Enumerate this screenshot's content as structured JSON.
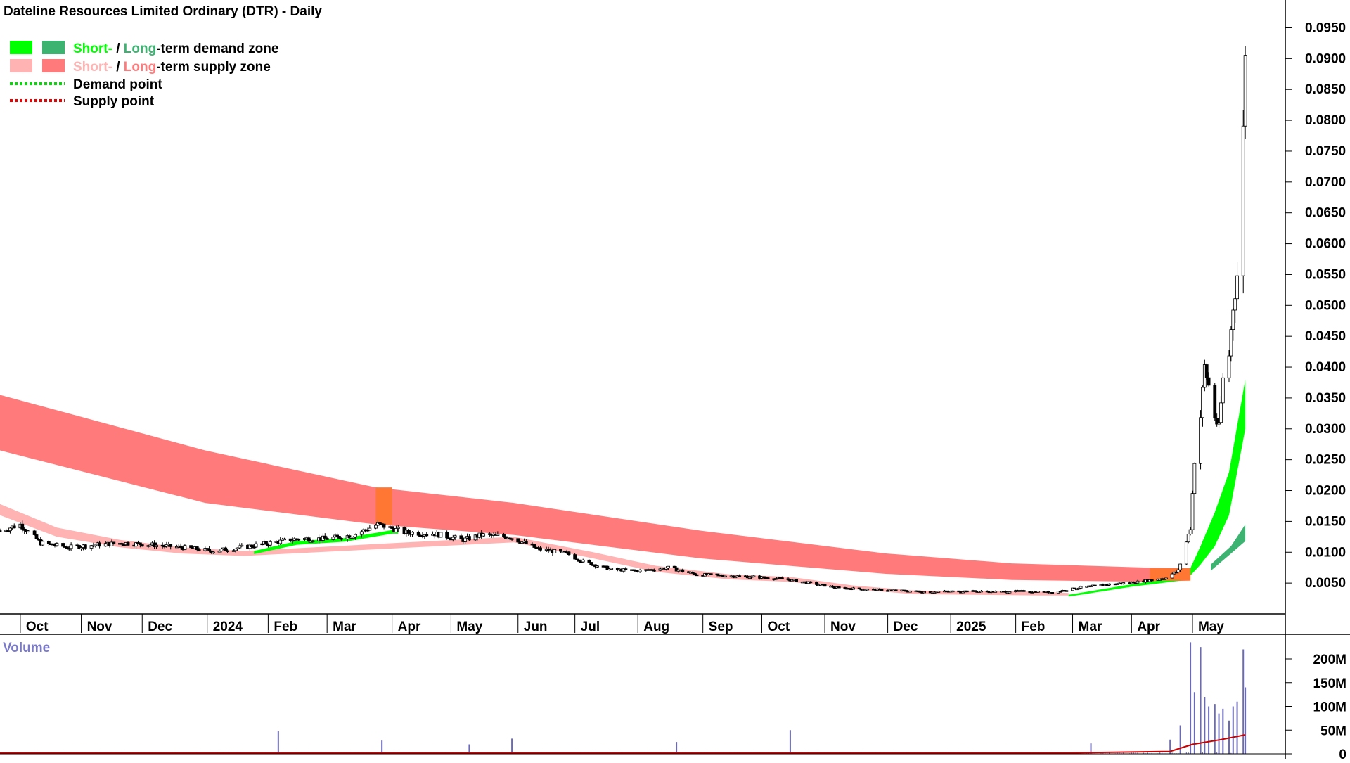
{
  "title": "Dateline Resources Limited Ordinary (DTR) - Daily",
  "legend": {
    "demand_zone": {
      "short": "Short-",
      "sep": " / ",
      "long": "Long",
      "rest": "-term demand zone"
    },
    "supply_zone": {
      "short": "Short-",
      "sep": " / ",
      "long": "Long",
      "rest": "-term supply zone"
    },
    "demand_point": "Demand point",
    "supply_point": "Supply point"
  },
  "colors": {
    "demand_short": "#00ff00",
    "demand_long": "#3cb371",
    "supply_short": "#ffb3b3",
    "supply_long": "#ff7b7b",
    "overlap": "#ff7733",
    "demand_point": "#00dd00",
    "supply_point": "#ee0000",
    "volume_bar": "#6a6ab8",
    "volume_ma": "#cc0000",
    "volume_label": "#7a7ac8"
  },
  "chart_data": {
    "type": "candlestick",
    "title": "Dateline Resources Limited Ordinary (DTR) - Daily",
    "x_range": [
      "2023-09-22",
      "2025-05-28"
    ],
    "ylim": [
      0,
      0.0995
    ],
    "price_ticks": [
      "0.0950",
      "0.0900",
      "0.0850",
      "0.0800",
      "0.0750",
      "0.0700",
      "0.0650",
      "0.0600",
      "0.0550",
      "0.0500",
      "0.0450",
      "0.0400",
      "0.0350",
      "0.0300",
      "0.0250",
      "0.0200",
      "0.0150",
      "0.0100",
      "0.0050"
    ],
    "x_ticks": [
      {
        "label": "Oct",
        "date": "2023-10-02"
      },
      {
        "label": "Nov",
        "date": "2023-11-01"
      },
      {
        "label": "Dec",
        "date": "2023-12-01"
      },
      {
        "label": "2024",
        "date": "2024-01-02"
      },
      {
        "label": "Feb",
        "date": "2024-02-01"
      },
      {
        "label": "Mar",
        "date": "2024-03-01"
      },
      {
        "label": "Apr",
        "date": "2024-04-02"
      },
      {
        "label": "May",
        "date": "2024-05-01"
      },
      {
        "label": "Jun",
        "date": "2024-06-03"
      },
      {
        "label": "Jul",
        "date": "2024-07-01"
      },
      {
        "label": "Aug",
        "date": "2024-08-01"
      },
      {
        "label": "Sep",
        "date": "2024-09-02"
      },
      {
        "label": "Oct",
        "date": "2024-10-01"
      },
      {
        "label": "Nov",
        "date": "2024-11-01"
      },
      {
        "label": "Dec",
        "date": "2024-12-02"
      },
      {
        "label": "2025",
        "date": "2025-01-02"
      },
      {
        "label": "Feb",
        "date": "2025-02-03"
      },
      {
        "label": "Mar",
        "date": "2025-03-03"
      },
      {
        "label": "Apr",
        "date": "2025-04-01"
      },
      {
        "label": "May",
        "date": "2025-05-01"
      }
    ],
    "price_path": [
      [
        "2023-09-22",
        0.0135
      ],
      [
        "2023-10-02",
        0.0145
      ],
      [
        "2023-10-12",
        0.0115
      ],
      [
        "2023-10-26",
        0.0108
      ],
      [
        "2023-11-08",
        0.0112
      ],
      [
        "2023-11-22",
        0.0115
      ],
      [
        "2023-12-06",
        0.0112
      ],
      [
        "2023-12-20",
        0.0108
      ],
      [
        "2024-01-05",
        0.0102
      ],
      [
        "2024-01-19",
        0.0108
      ],
      [
        "2024-02-02",
        0.0115
      ],
      [
        "2024-02-16",
        0.0122
      ],
      [
        "2024-03-01",
        0.0122
      ],
      [
        "2024-03-14",
        0.0128
      ],
      [
        "2024-03-26",
        0.0145
      ],
      [
        "2024-04-09",
        0.0132
      ],
      [
        "2024-04-23",
        0.013
      ],
      [
        "2024-05-07",
        0.012
      ],
      [
        "2024-05-16",
        0.0128
      ],
      [
        "2024-05-30",
        0.0125
      ],
      [
        "2024-06-13",
        0.0105
      ],
      [
        "2024-06-27",
        0.0098
      ],
      [
        "2024-07-05",
        0.0085
      ],
      [
        "2024-07-19",
        0.0072
      ],
      [
        "2024-08-02",
        0.007
      ],
      [
        "2024-08-16",
        0.0075
      ],
      [
        "2024-08-30",
        0.0064
      ],
      [
        "2024-09-13",
        0.0062
      ],
      [
        "2024-09-27",
        0.006
      ],
      [
        "2024-10-11",
        0.0057
      ],
      [
        "2024-10-25",
        0.005
      ],
      [
        "2024-11-08",
        0.0042
      ],
      [
        "2024-11-22",
        0.004
      ],
      [
        "2024-12-06",
        0.0038
      ],
      [
        "2024-12-20",
        0.0036
      ],
      [
        "2025-01-10",
        0.0037
      ],
      [
        "2025-01-24",
        0.0036
      ],
      [
        "2025-02-07",
        0.0037
      ],
      [
        "2025-02-21",
        0.0035
      ],
      [
        "2025-03-07",
        0.0043
      ],
      [
        "2025-03-21",
        0.0048
      ],
      [
        "2025-04-04",
        0.0052
      ],
      [
        "2025-04-17",
        0.0058
      ],
      [
        "2025-04-24",
        0.007
      ],
      [
        "2025-04-30",
        0.014
      ],
      [
        "2025-05-02",
        0.025
      ],
      [
        "2025-05-05",
        0.032
      ],
      [
        "2025-05-07",
        0.04
      ],
      [
        "2025-05-09",
        0.037
      ],
      [
        "2025-05-12",
        0.032
      ],
      [
        "2025-05-14",
        0.03
      ],
      [
        "2025-05-16",
        0.038
      ],
      [
        "2025-05-19",
        0.042
      ],
      [
        "2025-05-21",
        0.05
      ],
      [
        "2025-05-23",
        0.055
      ],
      [
        "2025-05-26",
        0.078
      ],
      [
        "2025-05-27",
        0.092
      ]
    ],
    "long_term_supply_zone": {
      "upper": [
        [
          "2023-09-22",
          0.0355
        ],
        [
          "2024-01-01",
          0.0265
        ],
        [
          "2024-03-25",
          0.0205
        ],
        [
          "2024-06-01",
          0.018
        ],
        [
          "2024-09-01",
          0.0135
        ],
        [
          "2024-12-01",
          0.0098
        ],
        [
          "2025-02-01",
          0.0082
        ],
        [
          "2025-04-10",
          0.0075
        ],
        [
          "2025-04-30",
          0.0074
        ]
      ],
      "lower": [
        [
          "2023-09-22",
          0.0265
        ],
        [
          "2024-01-01",
          0.018
        ],
        [
          "2024-03-25",
          0.0145
        ],
        [
          "2024-06-01",
          0.0128
        ],
        [
          "2024-09-01",
          0.009
        ],
        [
          "2024-12-01",
          0.0065
        ],
        [
          "2025-02-01",
          0.0055
        ],
        [
          "2025-04-10",
          0.0052
        ],
        [
          "2025-04-30",
          0.0054
        ]
      ]
    },
    "short_term_supply_zone": {
      "upper": [
        [
          "2023-09-22",
          0.0178
        ],
        [
          "2023-10-20",
          0.014
        ],
        [
          "2023-11-20",
          0.012
        ],
        [
          "2023-12-20",
          0.0108
        ],
        [
          "2024-01-20",
          0.0102
        ],
        [
          "2024-06-01",
          0.0125
        ],
        [
          "2024-07-10",
          0.01
        ],
        [
          "2024-08-10",
          0.0078
        ],
        [
          "2024-09-15",
          0.0064
        ],
        [
          "2024-10-15",
          0.006
        ],
        [
          "2024-11-15",
          0.0046
        ],
        [
          "2024-12-15",
          0.0038
        ],
        [
          "2025-02-15",
          0.0036
        ],
        [
          "2025-03-01",
          0.0034
        ]
      ],
      "lower": [
        [
          "2023-09-22",
          0.016
        ],
        [
          "2023-10-20",
          0.0125
        ],
        [
          "2023-11-20",
          0.0108
        ],
        [
          "2023-12-20",
          0.0098
        ],
        [
          "2024-01-20",
          0.0094
        ],
        [
          "2024-06-01",
          0.0116
        ],
        [
          "2024-07-10",
          0.009
        ],
        [
          "2024-08-10",
          0.0068
        ],
        [
          "2024-09-15",
          0.0056
        ],
        [
          "2024-10-15",
          0.0052
        ],
        [
          "2024-11-15",
          0.004
        ],
        [
          "2024-12-15",
          0.0032
        ],
        [
          "2025-02-15",
          0.003
        ],
        [
          "2025-03-01",
          0.003
        ]
      ]
    },
    "short_term_demand_zone": {
      "upper": [
        [
          "2024-01-25",
          0.0102
        ],
        [
          "2024-02-15",
          0.0118
        ],
        [
          "2024-03-10",
          0.0123
        ],
        [
          "2024-04-02",
          0.0136
        ],
        [
          "2024-04-05",
          0.0136
        ]
      ],
      "lower": [
        [
          "2024-01-25",
          0.0097
        ],
        [
          "2024-02-15",
          0.0112
        ],
        [
          "2024-03-10",
          0.0117
        ],
        [
          "2024-04-02",
          0.013
        ],
        [
          "2024-04-05",
          0.013
        ]
      ],
      "upper2": [
        [
          "2025-03-01",
          0.0031
        ],
        [
          "2025-04-01",
          0.0048
        ],
        [
          "2025-04-28",
          0.006
        ],
        [
          "2025-05-05",
          0.011
        ],
        [
          "2025-05-12",
          0.0165
        ],
        [
          "2025-05-19",
          0.023
        ],
        [
          "2025-05-27",
          0.038
        ]
      ],
      "lower2": [
        [
          "2025-03-01",
          0.0028
        ],
        [
          "2025-04-01",
          0.0044
        ],
        [
          "2025-04-28",
          0.0055
        ],
        [
          "2025-05-05",
          0.008
        ],
        [
          "2025-05-12",
          0.011
        ],
        [
          "2025-05-19",
          0.016
        ],
        [
          "2025-05-27",
          0.03
        ]
      ]
    },
    "long_term_demand_zone": {
      "upper": [
        [
          "2025-05-10",
          0.008
        ],
        [
          "2025-05-20",
          0.011
        ],
        [
          "2025-05-27",
          0.0145
        ]
      ],
      "lower": [
        [
          "2025-05-10",
          0.007
        ],
        [
          "2025-05-20",
          0.0098
        ],
        [
          "2025-05-27",
          0.0118
        ]
      ]
    },
    "overlap_zones": [
      {
        "from": "2024-03-25",
        "to": "2024-04-02",
        "low": 0.0145,
        "high": 0.0205
      },
      {
        "from": "2025-04-10",
        "to": "2025-04-30",
        "low": 0.0054,
        "high": 0.0074
      }
    ],
    "volume": {
      "label": "Volume",
      "ticks": [
        "200M",
        "150M",
        "100M",
        "50M",
        "0"
      ],
      "ylim": [
        0,
        240
      ],
      "spikes": [
        {
          "date": "2024-02-06",
          "value": 48
        },
        {
          "date": "2024-03-28",
          "value": 28
        },
        {
          "date": "2024-05-10",
          "value": 20
        },
        {
          "date": "2024-05-31",
          "value": 32
        },
        {
          "date": "2024-08-20",
          "value": 25
        },
        {
          "date": "2024-10-15",
          "value": 50
        },
        {
          "date": "2025-03-12",
          "value": 22
        },
        {
          "date": "2025-04-20",
          "value": 30
        },
        {
          "date": "2025-04-25",
          "value": 60
        },
        {
          "date": "2025-04-30",
          "value": 235
        },
        {
          "date": "2025-05-02",
          "value": 130
        },
        {
          "date": "2025-05-05",
          "value": 225
        },
        {
          "date": "2025-05-07",
          "value": 120
        },
        {
          "date": "2025-05-09",
          "value": 100
        },
        {
          "date": "2025-05-12",
          "value": 105
        },
        {
          "date": "2025-05-14",
          "value": 85
        },
        {
          "date": "2025-05-16",
          "value": 95
        },
        {
          "date": "2025-05-19",
          "value": 70
        },
        {
          "date": "2025-05-21",
          "value": 100
        },
        {
          "date": "2025-05-23",
          "value": 110
        },
        {
          "date": "2025-05-26",
          "value": 220
        },
        {
          "date": "2025-05-27",
          "value": 140
        }
      ],
      "ma": [
        [
          "2023-09-22",
          2
        ],
        [
          "2025-03-01",
          2
        ],
        [
          "2025-04-20",
          5
        ],
        [
          "2025-05-01",
          20
        ],
        [
          "2025-05-15",
          30
        ],
        [
          "2025-05-27",
          40
        ]
      ]
    }
  }
}
